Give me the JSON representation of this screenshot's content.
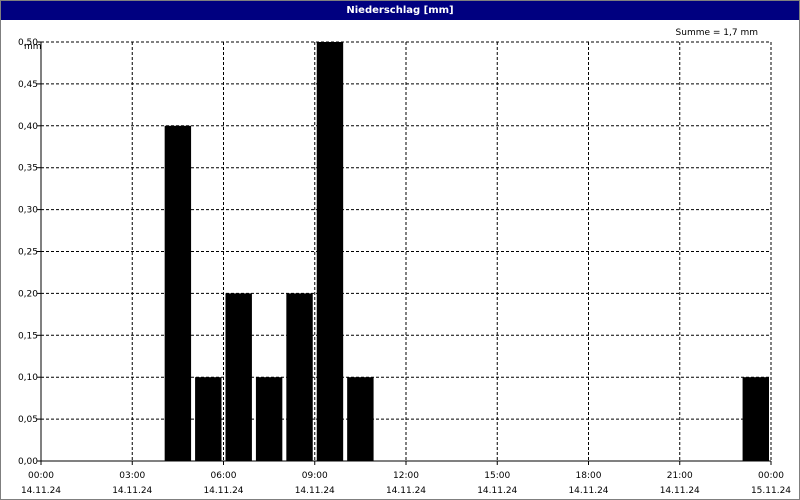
{
  "window": {
    "title": "Niederschlag [mm]"
  },
  "chart_data": {
    "type": "bar",
    "title": "Niederschlag [mm]",
    "ylabel": "mm",
    "xlabel": "",
    "annotation": "Summe = 1,7 mm",
    "ylim": [
      0,
      0.5
    ],
    "grid": true,
    "y_tick_labels": [
      "0,00",
      "0,05",
      "0,10",
      "0,15",
      "0,20",
      "0,25",
      "0,30",
      "0,35",
      "0,40",
      "0,45",
      "0,50"
    ],
    "y_tick_values": [
      0,
      0.05,
      0.1,
      0.15,
      0.2,
      0.25,
      0.3,
      0.35,
      0.4,
      0.45,
      0.5
    ],
    "x_range_hours": [
      0,
      24
    ],
    "x_ticks": [
      {
        "hour": 0,
        "time": "00:00",
        "date": "14.11.24"
      },
      {
        "hour": 3,
        "time": "03:00",
        "date": "14.11.24"
      },
      {
        "hour": 6,
        "time": "06:00",
        "date": "14.11.24"
      },
      {
        "hour": 9,
        "time": "09:00",
        "date": "14.11.24"
      },
      {
        "hour": 12,
        "time": "12:00",
        "date": "14.11.24"
      },
      {
        "hour": 15,
        "time": "15:00",
        "date": "14.11.24"
      },
      {
        "hour": 18,
        "time": "18:00",
        "date": "14.11.24"
      },
      {
        "hour": 21,
        "time": "21:00",
        "date": "14.11.24"
      },
      {
        "hour": 24,
        "time": "00:00",
        "date": "15.11.24"
      }
    ],
    "bars": [
      {
        "start_hour": 4,
        "value": 0.4
      },
      {
        "start_hour": 5,
        "value": 0.1
      },
      {
        "start_hour": 6,
        "value": 0.2
      },
      {
        "start_hour": 7,
        "value": 0.1
      },
      {
        "start_hour": 8,
        "value": 0.2
      },
      {
        "start_hour": 9,
        "value": 0.5
      },
      {
        "start_hour": 10,
        "value": 0.1
      },
      {
        "start_hour": 23,
        "value": 0.1
      }
    ],
    "bar_color": "#000000",
    "title_bar_color": "#000080"
  }
}
